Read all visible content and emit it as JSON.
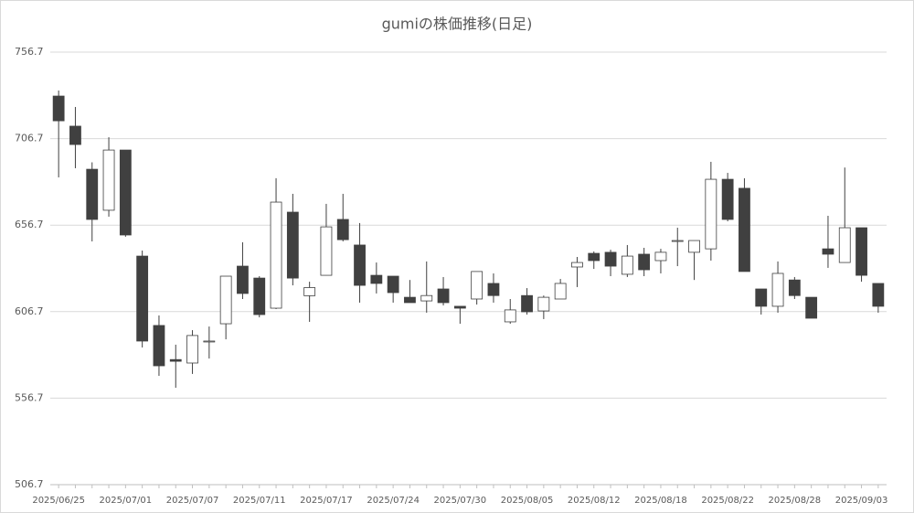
{
  "chart_data": {
    "type": "candlestick",
    "title": "gumiの株価推移(日足)",
    "categories": [
      "2025/06/25",
      null,
      null,
      null,
      "2025/07/01",
      null,
      null,
      null,
      "2025/07/07",
      null,
      null,
      null,
      "2025/07/11",
      null,
      null,
      null,
      "2025/07/17",
      null,
      null,
      null,
      "2025/07/24",
      null,
      null,
      null,
      "2025/07/30",
      null,
      null,
      null,
      "2025/08/05",
      null,
      null,
      null,
      "2025/08/12",
      null,
      null,
      null,
      "2025/08/18",
      null,
      null,
      null,
      "2025/08/22",
      null,
      null,
      null,
      "2025/08/28",
      null,
      null,
      null,
      "2025/09/03",
      null
    ],
    "open": [
      731.3,
      713.9,
      689.0,
      665.3,
      700.1,
      638.8,
      598.7,
      579.0,
      577.0,
      589.2,
      599.7,
      633.0,
      626.1,
      608.7,
      664.2,
      615.9,
      627.7,
      660.0,
      645.2,
      627.7,
      627.2,
      615.0,
      612.9,
      619.8,
      609.8,
      614.0,
      623.0,
      600.8,
      616.0,
      607.1,
      614.0,
      632.5,
      640.4,
      641.0,
      628.3,
      639.9,
      636.2,
      647.3,
      641.0,
      643.0,
      683.2,
      678.0,
      619.8,
      609.8,
      625.0,
      615.0,
      643.0,
      635.1,
      655.2,
      623.0
    ],
    "high": [
      734.5,
      725.0,
      693.0,
      707.5,
      700.1,
      642.0,
      604.5,
      587.6,
      596.0,
      598.1,
      627.2,
      646.8,
      627.2,
      683.8,
      674.8,
      624.0,
      669.0,
      674.8,
      657.9,
      635.1,
      627.2,
      625.0,
      635.7,
      626.7,
      609.8,
      629.9,
      628.8,
      614.0,
      620.3,
      616.0,
      625.6,
      638.3,
      641.5,
      642.5,
      645.2,
      643.6,
      643.0,
      655.2,
      647.8,
      693.3,
      686.9,
      683.8,
      619.8,
      635.7,
      626.7,
      615.0,
      662.1,
      690.0,
      655.2,
      623.0
    ],
    "low": [
      684.3,
      689.6,
      647.3,
      661.6,
      650.0,
      586.0,
      569.6,
      562.7,
      570.7,
      579.6,
      590.7,
      614.0,
      603.4,
      608.2,
      621.9,
      600.8,
      627.7,
      647.3,
      611.9,
      617.2,
      611.9,
      611.9,
      606.1,
      610.3,
      599.7,
      610.8,
      611.9,
      599.7,
      605.0,
      602.4,
      614.0,
      620.9,
      631.4,
      627.2,
      626.7,
      627.2,
      628.8,
      633.0,
      625.0,
      636.2,
      658.9,
      629.9,
      605.0,
      606.1,
      614.0,
      602.9,
      632.0,
      635.1,
      624.0,
      606.1
    ],
    "close": [
      717.0,
      703.3,
      660.0,
      700.1,
      651.0,
      589.7,
      575.4,
      578.0,
      592.9,
      589.7,
      627.2,
      617.2,
      605.0,
      670.0,
      626.1,
      620.6,
      655.7,
      648.3,
      621.9,
      623.0,
      617.7,
      611.9,
      616.0,
      611.9,
      608.7,
      629.9,
      616.0,
      607.7,
      606.6,
      615.0,
      623.0,
      635.1,
      636.2,
      633.0,
      638.8,
      630.9,
      641.0,
      647.8,
      647.8,
      683.2,
      660.0,
      629.9,
      609.8,
      628.8,
      616.0,
      602.9,
      639.9,
      655.2,
      627.7,
      609.8
    ],
    "up_color": "#ffffff",
    "down_color": "#404040",
    "edge_color": "#404040",
    "ylim": [
      506.7,
      756.7
    ],
    "yticks": [
      506.7,
      556.7,
      606.7,
      656.7,
      706.7,
      756.7
    ],
    "grid": true
  }
}
